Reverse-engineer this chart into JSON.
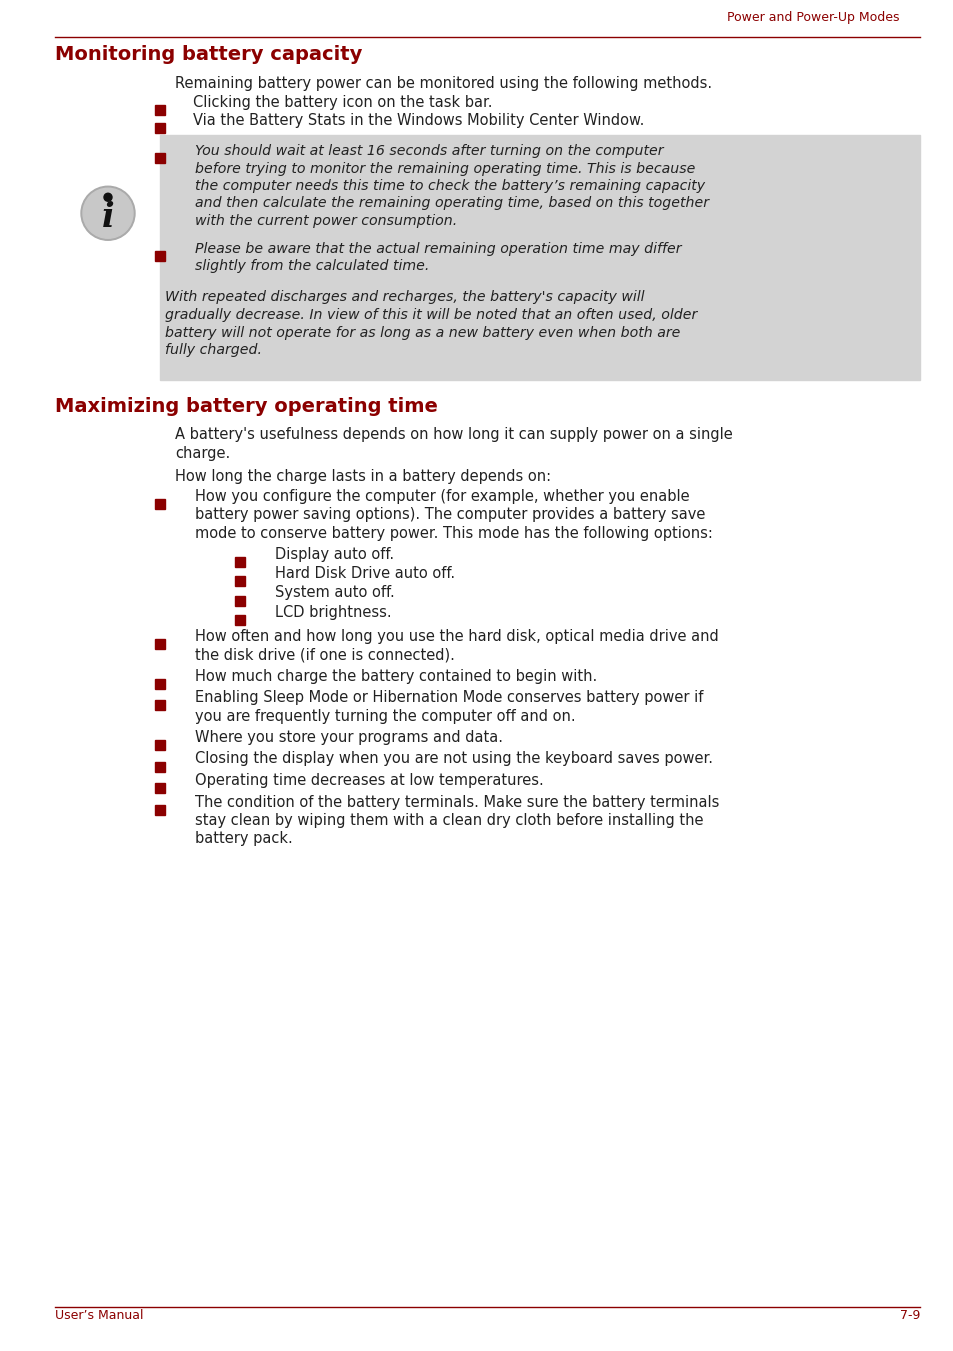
{
  "header_text": "Power and Power-Up Modes",
  "header_color": "#8B0000",
  "header_line_color": "#8B0000",
  "section1_title": "Monitoring battery capacity",
  "section1_title_color": "#8B0000",
  "section2_title": "Maximizing battery operating time",
  "section2_title_color": "#8B0000",
  "footer_left": "User’s Manual",
  "footer_right": "7-9",
  "footer_color": "#8B0000",
  "body_color": "#222222",
  "bg_color": "#ffffff",
  "info_box_bg": "#d3d3d3",
  "bullet_color": "#8B0000",
  "section1_intro": "Remaining battery power can be monitored using the following methods.",
  "section1_bullet1": "Clicking the battery icon on the task bar.",
  "section1_bullet2": "Via the Battery Stats in the Windows Mobility Center Window.",
  "info_line1a": "You should wait at least 16 seconds after turning on the computer",
  "info_line1b": "before trying to monitor the remaining operating time. This is because",
  "info_line1c": "the computer needs this time to check the battery’s remaining capacity",
  "info_line1d": "and then calculate the remaining operating time, based on this together",
  "info_line1e": "with the current power consumption.",
  "info_line2a": "Please be aware that the actual remaining operation time may differ",
  "info_line2b": "slightly from the calculated time.",
  "note_line1": "With repeated discharges and recharges, the battery's capacity will",
  "note_line2": "gradually decrease. In view of this it will be noted that an often used, older",
  "note_line3": "battery will not operate for as long as a new battery even when both are",
  "note_line4": "fully charged.",
  "section2_intro1a": "A battery's usefulness depends on how long it can supply power on a single",
  "section2_intro1b": "charge.",
  "section2_intro2": "How long the charge lasts in a battery depends on:",
  "mb1_line1": "How you configure the computer (for example, whether you enable",
  "mb1_line2": "battery power saving options). The computer provides a battery save",
  "mb1_line3": "mode to conserve battery power. This mode has the following options:",
  "sub_bullets": [
    "Display auto off.",
    "Hard Disk Drive auto off.",
    "System auto off.",
    "LCD brightness."
  ],
  "rem_bullets": [
    [
      "How often and how long you use the hard disk, optical media drive and",
      "the disk drive (if one is connected)."
    ],
    [
      "How much charge the battery contained to begin with."
    ],
    [
      "Enabling Sleep Mode or Hibernation Mode conserves battery power if",
      "you are frequently turning the computer off and on."
    ],
    [
      "Where you store your programs and data."
    ],
    [
      "Closing the display when you are not using the keyboard saves power."
    ],
    [
      "Operating time decreases at low temperatures."
    ],
    [
      "The condition of the battery terminals. Make sure the battery terminals",
      "stay clean by wiping them with a clean dry cloth before installing the",
      "battery pack."
    ]
  ]
}
